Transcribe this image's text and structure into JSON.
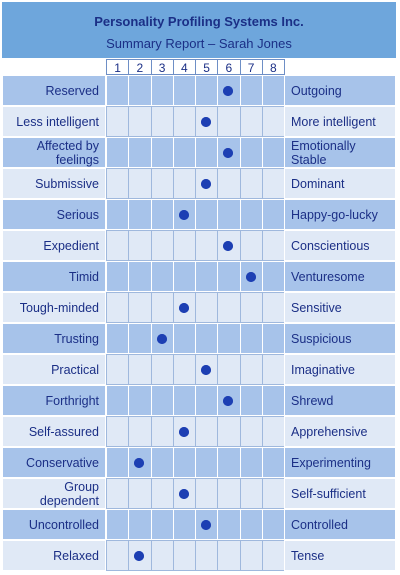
{
  "header": {
    "title": "Personality Profiling Systems Inc.",
    "subtitle": "Summary Report – Sarah Jones"
  },
  "scale": [
    1,
    2,
    3,
    4,
    5,
    6,
    7,
    8
  ],
  "rows": [
    {
      "left": "Reserved",
      "right": "Outgoing",
      "value": 6
    },
    {
      "left": "Less intelligent",
      "right": "More intelligent",
      "value": 5
    },
    {
      "left": "Affected by feelings",
      "right": "Emotionally Stable",
      "value": 6
    },
    {
      "left": "Submissive",
      "right": "Dominant",
      "value": 5
    },
    {
      "left": "Serious",
      "right": "Happy-go-lucky",
      "value": 4
    },
    {
      "left": "Expedient",
      "right": "Conscientious",
      "value": 6
    },
    {
      "left": "Timid",
      "right": "Venturesome",
      "value": 7
    },
    {
      "left": "Tough-minded",
      "right": "Sensitive",
      "value": 4
    },
    {
      "left": "Trusting",
      "right": "Suspicious",
      "value": 3
    },
    {
      "left": "Practical",
      "right": "Imaginative",
      "value": 5
    },
    {
      "left": "Forthright",
      "right": "Shrewd",
      "value": 6
    },
    {
      "left": "Self-assured",
      "right": "Apprehensive",
      "value": 4
    },
    {
      "left": "Conservative",
      "right": "Experimenting",
      "value": 2
    },
    {
      "left": "Group dependent",
      "right": "Self-sufficient",
      "value": 4
    },
    {
      "left": "Uncontrolled",
      "right": "Controlled",
      "value": 5
    },
    {
      "left": "Relaxed",
      "right": "Tense",
      "value": 2
    }
  ]
}
